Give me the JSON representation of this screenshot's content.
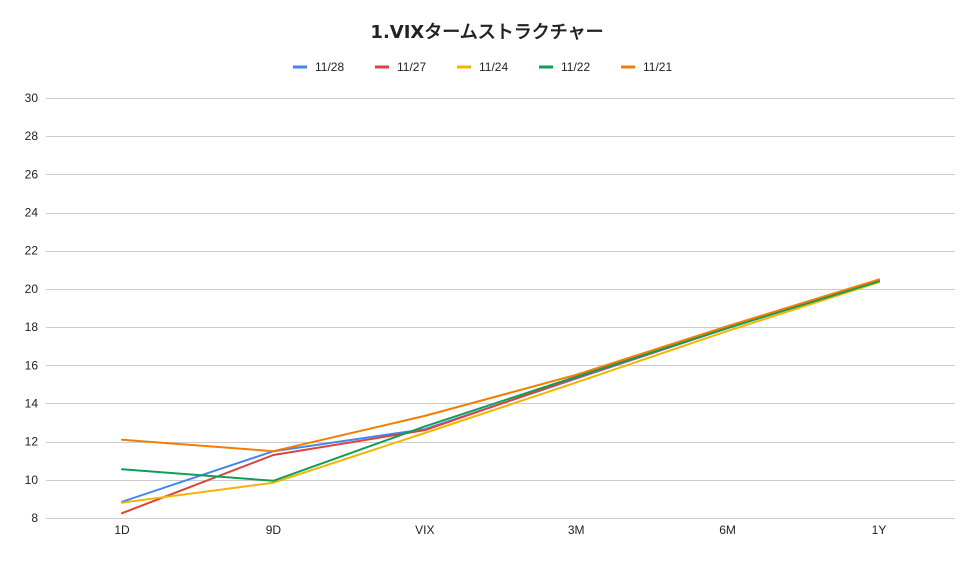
{
  "chart_data": {
    "type": "line",
    "title": "1.VIXタームストラクチャー",
    "categories": [
      "1D",
      "9D",
      "VIX",
      "3M",
      "6M",
      "1Y"
    ],
    "ylim": [
      8,
      30
    ],
    "yticks": [
      8,
      10,
      12,
      14,
      16,
      18,
      20,
      22,
      24,
      26,
      28,
      30
    ],
    "grid": true,
    "legend_position": "top",
    "series": [
      {
        "name": "11/28",
        "color": "#4285F4",
        "values": [
          8.85,
          11.5,
          12.65,
          15.3,
          17.95,
          20.45
        ]
      },
      {
        "name": "11/27",
        "color": "#DB4437",
        "values": [
          8.25,
          11.3,
          12.6,
          15.35,
          17.95,
          20.45
        ]
      },
      {
        "name": "11/24",
        "color": "#F4B400",
        "values": [
          8.8,
          9.85,
          12.45,
          15.1,
          17.8,
          20.35
        ]
      },
      {
        "name": "11/22",
        "color": "#0F9D58",
        "values": [
          10.55,
          9.95,
          12.8,
          15.4,
          17.95,
          20.4
        ]
      },
      {
        "name": "11/21",
        "color": "#F57C00",
        "values": [
          12.1,
          11.5,
          13.35,
          15.5,
          18.05,
          20.5
        ]
      }
    ]
  }
}
